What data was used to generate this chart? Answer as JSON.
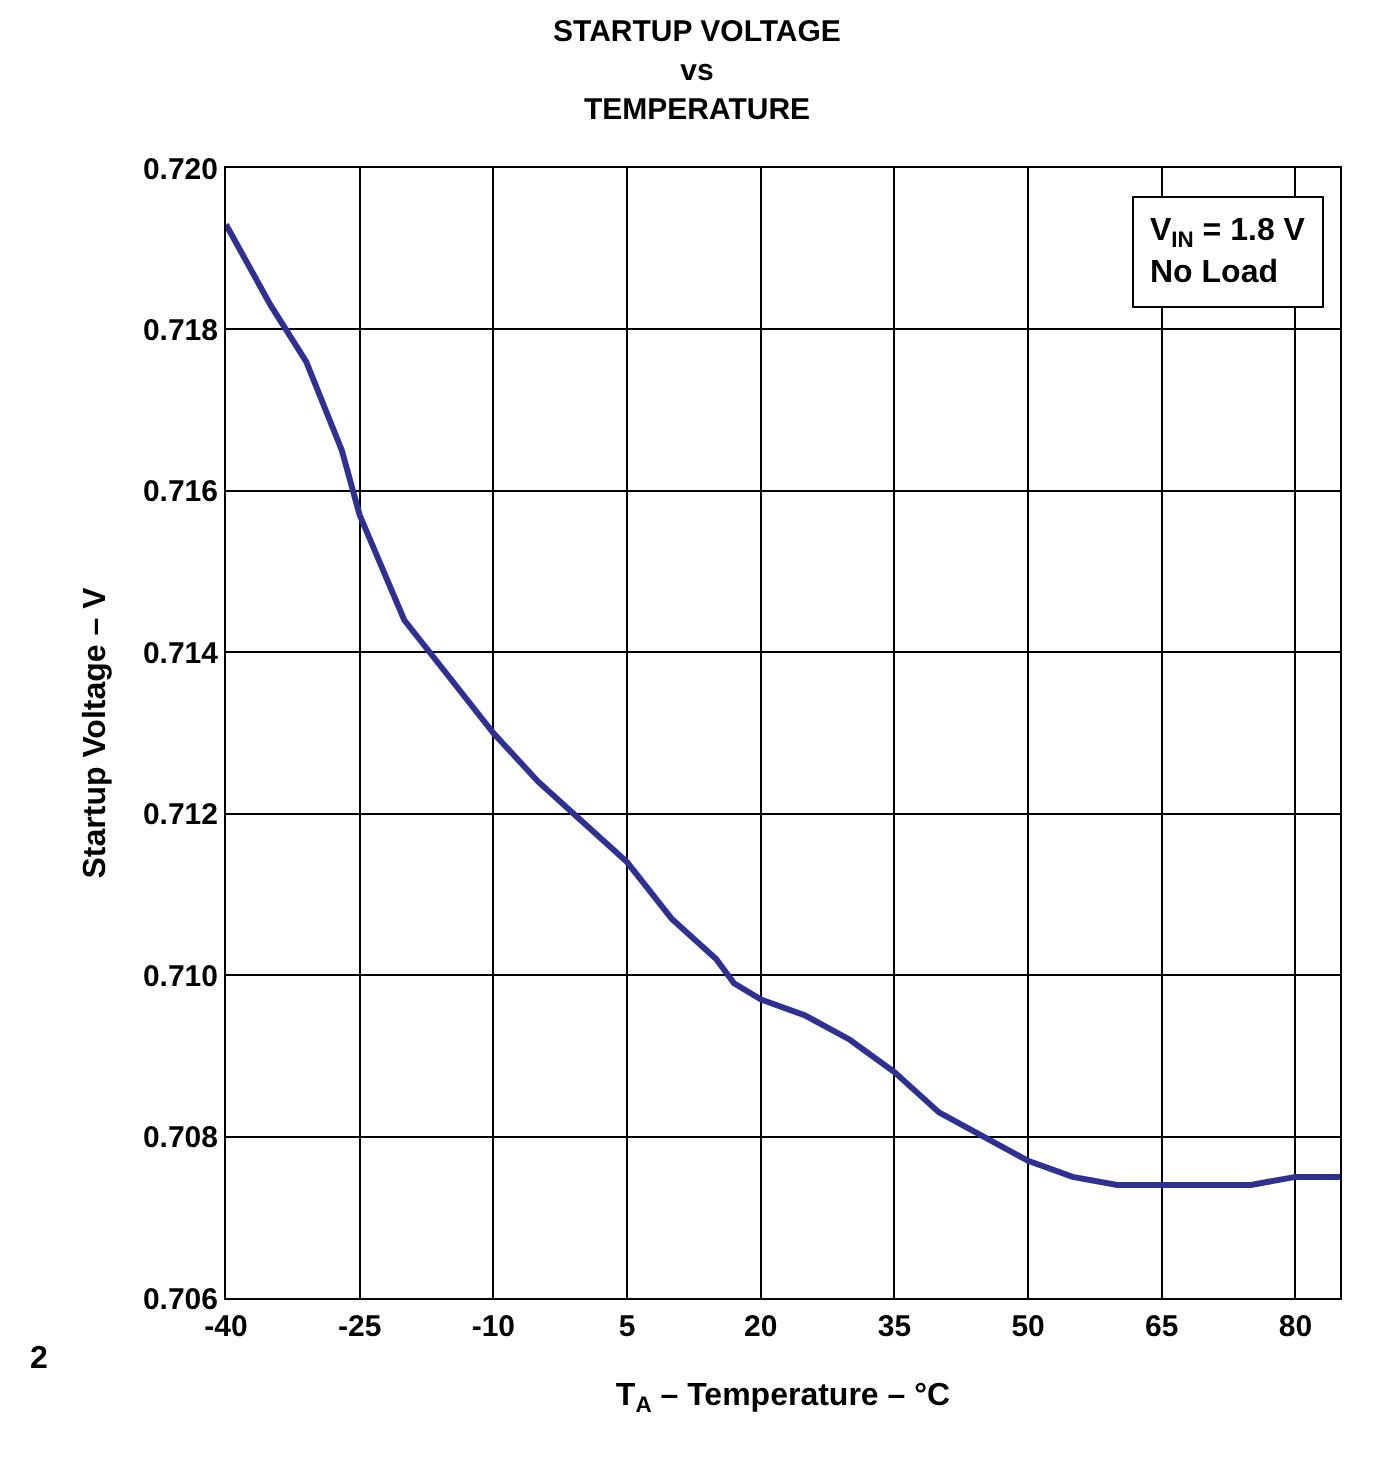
{
  "chart_data": {
    "type": "line",
    "title": "STARTUP VOLTAGE\nvs\nTEMPERATURE",
    "xlabel": "T$_{A}$ – Temperature – °C",
    "ylabel": "Startup Voltage – V",
    "annotations": [
      "V$_{IN}$ = 1.8 V\nNo Load",
      "2"
    ],
    "x": [
      -40,
      -35,
      -31,
      -27,
      -25,
      -20,
      -15,
      -10,
      -5,
      0,
      5,
      10,
      15,
      17,
      20,
      25,
      30,
      35,
      40,
      45,
      50,
      55,
      60,
      65,
      70,
      75,
      80,
      85
    ],
    "series": [
      {
        "color": "#2e3192",
        "values": [
          0.7193,
          0.7183,
          0.7176,
          0.7165,
          0.7157,
          0.7144,
          0.7137,
          0.713,
          0.7124,
          0.7119,
          0.7114,
          0.7107,
          0.7102,
          0.7099,
          0.7097,
          0.7095,
          0.7092,
          0.7088,
          0.7083,
          0.708,
          0.7077,
          0.7075,
          0.7074,
          0.7074,
          0.7074,
          0.7074,
          0.7075,
          0.7075
        ]
      }
    ],
    "xlim": [
      -40,
      85
    ],
    "xticks": [
      -40,
      -25,
      -10,
      5,
      20,
      35,
      50,
      65,
      80
    ],
    "ylim": [
      0.706,
      0.72
    ],
    "yticks": [
      {
        "value": 0.706,
        "label": "0.706"
      },
      {
        "value": 0.708,
        "label": "0.708"
      },
      {
        "value": 0.71,
        "label": "0.710"
      },
      {
        "value": 0.712,
        "label": "0.712"
      },
      {
        "value": 0.714,
        "label": "0.714"
      },
      {
        "value": 0.716,
        "label": "0.716"
      },
      {
        "value": 0.718,
        "label": "0.718"
      },
      {
        "value": 0.72,
        "label": "0.720"
      }
    ],
    "grid": true,
    "marker": "none",
    "line_style": "solid"
  }
}
